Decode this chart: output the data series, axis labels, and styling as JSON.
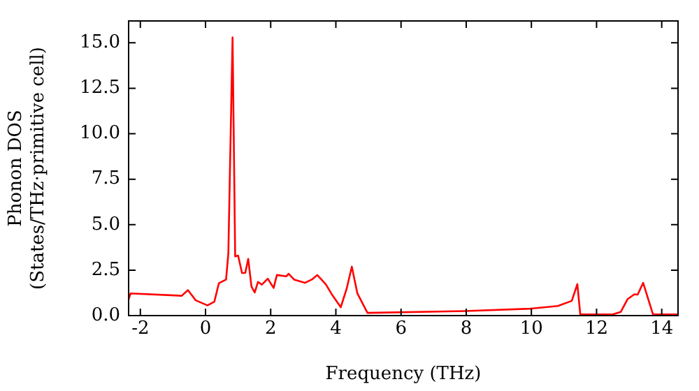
{
  "chart_data": {
    "type": "line",
    "xlabel": "Frequency (THz)",
    "ylabel": "Phonon DOS\n(States/THz·primitive cell)",
    "x": [
      -2.36,
      -2.3,
      -0.73,
      -0.54,
      -0.3,
      0.06,
      0.27,
      0.41,
      0.63,
      0.7,
      0.83,
      0.91,
      1.0,
      1.12,
      1.22,
      1.31,
      1.41,
      1.51,
      1.61,
      1.73,
      1.91,
      2.09,
      2.19,
      2.48,
      2.55,
      2.72,
      3.05,
      3.26,
      3.43,
      3.69,
      3.9,
      4.15,
      4.33,
      4.49,
      4.66,
      4.97,
      7.96,
      9.96,
      10.81,
      11.24,
      11.41,
      11.5,
      12.5,
      12.74,
      12.95,
      13.16,
      13.26,
      13.43,
      13.73,
      14.5
    ],
    "series": [
      {
        "color": "#ff0000",
        "values": [
          0.9,
          1.22,
          1.09,
          1.4,
          0.84,
          0.56,
          0.76,
          1.78,
          1.98,
          3.4,
          15.3,
          3.25,
          3.3,
          2.34,
          2.35,
          3.12,
          1.6,
          1.27,
          1.85,
          1.7,
          2.03,
          1.52,
          2.23,
          2.16,
          2.3,
          1.98,
          1.8,
          1.98,
          2.23,
          1.72,
          1.1,
          0.46,
          1.47,
          2.69,
          1.22,
          0.15,
          0.25,
          0.38,
          0.53,
          0.81,
          1.73,
          0.07,
          0.07,
          0.2,
          0.9,
          1.17,
          1.15,
          1.8,
          0.07,
          0.07
        ]
      }
    ],
    "xlim": [
      -2.36,
      14.5
    ],
    "ylim": [
      0,
      16.2
    ],
    "xticks": [
      -2,
      0,
      2,
      4,
      6,
      8,
      10,
      12,
      14
    ],
    "yticks": [
      {
        "value": 0,
        "label": "0.0"
      },
      {
        "value": 2.5,
        "label": "2.5"
      },
      {
        "value": 5,
        "label": "5.0"
      },
      {
        "value": 7.5,
        "label": "7.5"
      },
      {
        "value": 10,
        "label": "10.0"
      },
      {
        "value": 12.5,
        "label": "12.5"
      },
      {
        "value": 15,
        "label": "15.0"
      }
    ],
    "grid": false,
    "legend": false,
    "marker": "none",
    "line_style": "solid"
  }
}
